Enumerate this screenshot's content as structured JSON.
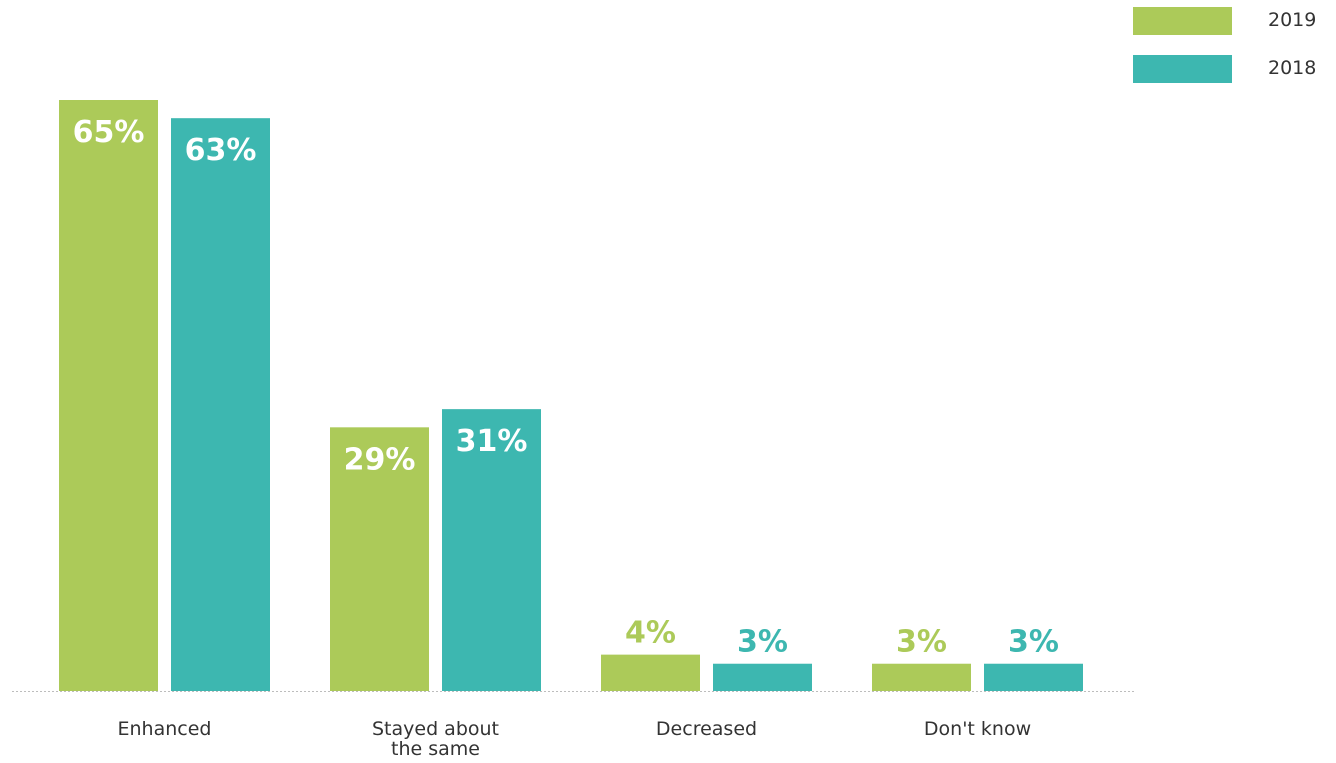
{
  "chart_data": {
    "type": "bar",
    "categories": [
      "Enhanced",
      "Stayed about the same",
      "Decreased",
      "Don't know"
    ],
    "category_lines": [
      [
        "Enhanced"
      ],
      [
        "Stayed about",
        "the same"
      ],
      [
        "Decreased"
      ],
      [
        "Don't know"
      ]
    ],
    "series": [
      {
        "name": "2019",
        "color": "#acca59",
        "values": [
          65,
          29,
          4,
          3
        ],
        "labels": [
          "65%",
          "29%",
          "4%",
          "3%"
        ]
      },
      {
        "name": "2018",
        "color": "#3db7b0",
        "values": [
          63,
          31,
          3,
          3
        ],
        "labels": [
          "63%",
          "31%",
          "3%",
          "3%"
        ]
      }
    ],
    "ylim": [
      0,
      65
    ],
    "grid": false,
    "legend_position": "top-right",
    "label_color_inside": "#ffffff"
  }
}
